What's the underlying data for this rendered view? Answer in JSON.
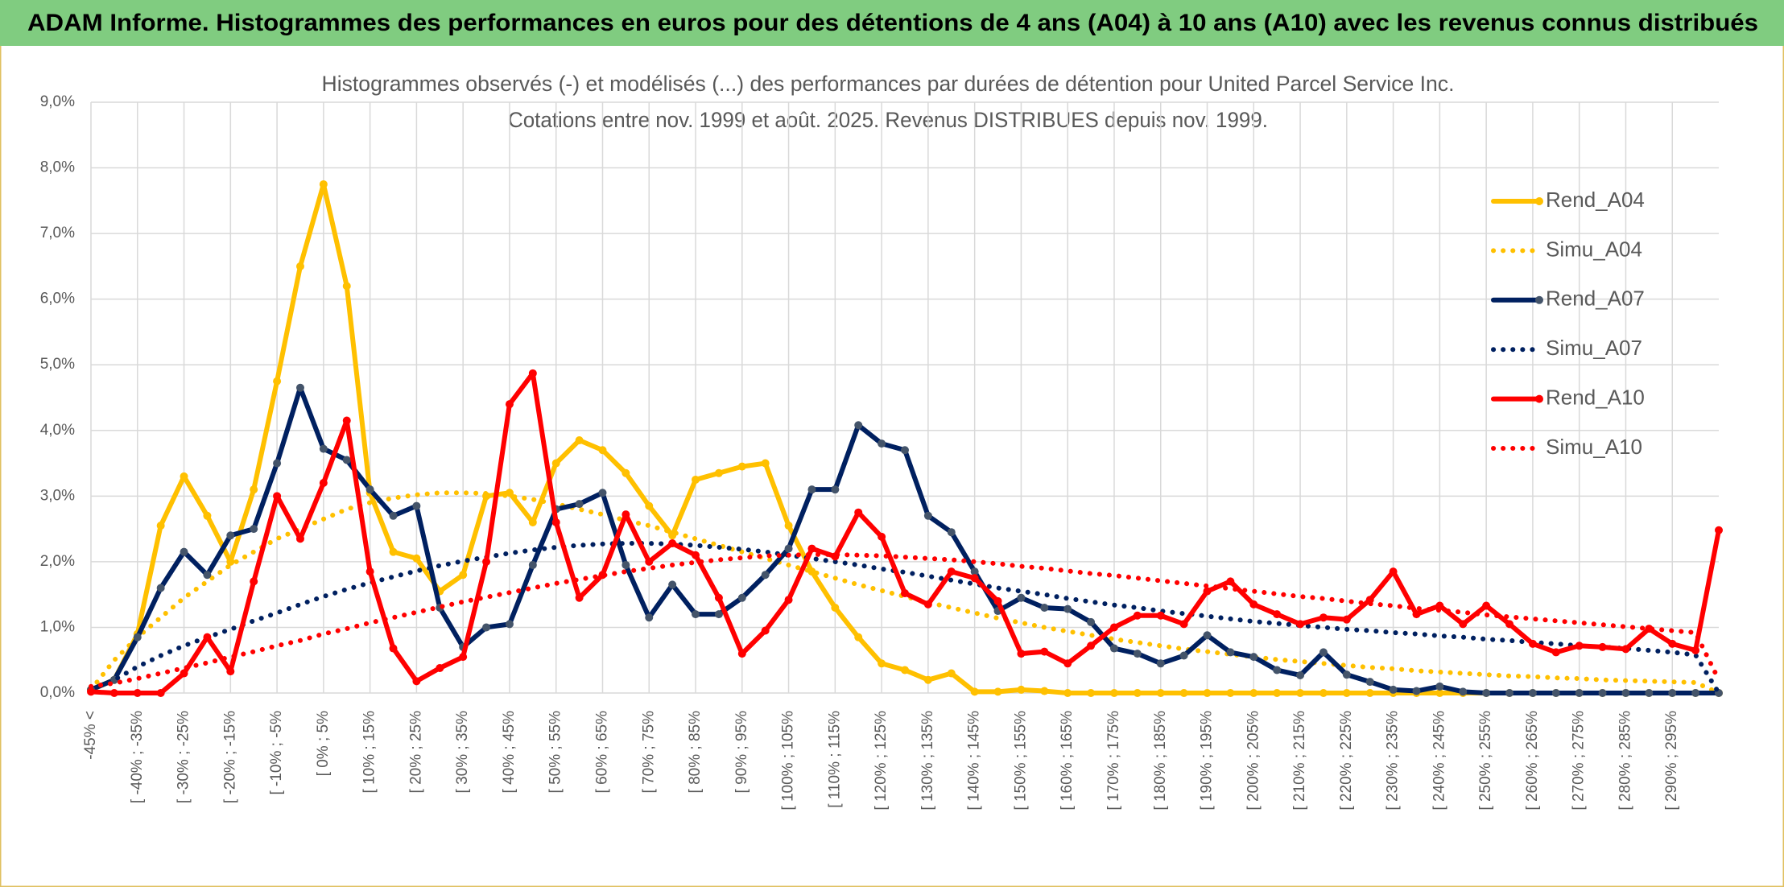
{
  "header": {
    "title": "ADAM Informe. Histogrammes des performances en euros pour des détentions de 4 ans (A04) à 10 ans (A10) avec les revenus connus distribués"
  },
  "chart_data": {
    "type": "line",
    "title": "Histogrammes observés (-) et modélisés (...) des performances par durées de détention pour United Parcel Service Inc.",
    "subtitle": "Cotations entre nov. 1999 et août. 2025. Revenus DISTRIBUES depuis nov. 1999.",
    "categories": [
      "-45% <",
      null,
      "[ -40% ; -35%",
      null,
      "[ -30% ; -25%",
      null,
      "[ -20% ; -15%",
      null,
      "[ -10% ; -5%",
      null,
      "[ 0% ; 5%",
      null,
      "[ 10% ; 15%",
      null,
      "[ 20% ; 25%",
      null,
      "[ 30% ; 35%",
      null,
      "[ 40% ; 45%",
      null,
      "[ 50% ; 55%",
      null,
      "[ 60% ; 65%",
      null,
      "[ 70% ; 75%",
      null,
      "[ 80% ; 85%",
      null,
      "[ 90% ; 95%",
      null,
      "[ 100% ; 105%",
      null,
      "[ 110% ; 115%",
      null,
      "[ 120% ; 125%",
      null,
      "[ 130% ; 135%",
      null,
      "[ 140% ; 145%",
      null,
      "[ 150% ; 155%",
      null,
      "[ 160% ; 165%",
      null,
      "[ 170% ; 175%",
      null,
      "[ 180% ; 185%",
      null,
      "[ 190% ; 195%",
      null,
      "[ 200% ; 205%",
      null,
      "[ 210% ; 215%",
      null,
      "[ 220% ; 225%",
      null,
      "[ 230% ; 235%",
      null,
      "[ 240% ; 245%",
      null,
      "[ 250% ; 255%",
      null,
      "[ 260% ; 265%",
      null,
      "[ 270% ; 275%",
      null,
      "[ 280% ; 285%",
      null,
      "[ 290% ; 295%",
      null,
      null
    ],
    "series": [
      {
        "name": "Rend_A04",
        "color": "#FFC000",
        "style": "solid",
        "values": [
          0.05,
          0.2,
          0.9,
          2.55,
          3.3,
          2.7,
          2.0,
          3.1,
          4.75,
          6.5,
          7.75,
          6.2,
          3.05,
          2.15,
          2.05,
          1.55,
          1.8,
          3.0,
          3.05,
          2.6,
          3.5,
          3.85,
          3.7,
          3.35,
          2.85,
          2.4,
          3.25,
          3.35,
          3.45,
          3.5,
          2.55,
          1.85,
          1.3,
          0.85,
          0.45,
          0.35,
          0.2,
          0.3,
          0.02,
          0.02,
          0.05,
          0.03,
          0,
          0,
          0,
          0,
          0,
          0,
          0,
          0,
          0,
          0,
          0,
          0,
          0,
          0,
          0,
          0,
          0,
          0,
          0,
          0,
          0,
          0,
          0,
          0,
          0,
          0,
          0,
          0,
          0
        ]
      },
      {
        "name": "Simu_A04",
        "color": "#FFC000",
        "style": "dotted",
        "values": [
          0.05,
          0.5,
          0.85,
          1.15,
          1.45,
          1.7,
          1.95,
          2.15,
          2.35,
          2.5,
          2.65,
          2.8,
          2.9,
          2.97,
          3.02,
          3.05,
          3.05,
          3.04,
          3.0,
          2.95,
          2.88,
          2.8,
          2.72,
          2.63,
          2.55,
          2.45,
          2.35,
          2.25,
          2.15,
          2.05,
          1.95,
          1.85,
          1.75,
          1.65,
          1.56,
          1.47,
          1.38,
          1.3,
          1.22,
          1.14,
          1.07,
          1.0,
          0.94,
          0.88,
          0.82,
          0.77,
          0.72,
          0.67,
          0.63,
          0.59,
          0.55,
          0.51,
          0.48,
          0.45,
          0.42,
          0.39,
          0.37,
          0.34,
          0.32,
          0.3,
          0.28,
          0.26,
          0.25,
          0.23,
          0.22,
          0.2,
          0.19,
          0.18,
          0.17,
          0.16,
          0
        ]
      },
      {
        "name": "Rend_A07",
        "color": "#002060",
        "style": "solid",
        "values": [
          0.05,
          0.2,
          0.85,
          1.6,
          2.15,
          1.8,
          2.4,
          2.5,
          3.5,
          4.65,
          3.72,
          3.55,
          3.1,
          2.7,
          2.85,
          1.3,
          0.7,
          1.0,
          1.05,
          1.95,
          2.8,
          2.88,
          3.05,
          1.95,
          1.15,
          1.65,
          1.2,
          1.2,
          1.45,
          1.8,
          2.2,
          3.1,
          3.1,
          4.08,
          3.8,
          3.7,
          2.7,
          2.45,
          1.85,
          1.25,
          1.45,
          1.3,
          1.28,
          1.08,
          0.68,
          0.6,
          0.45,
          0.57,
          0.88,
          0.62,
          0.55,
          0.35,
          0.27,
          0.62,
          0.28,
          0.17,
          0.05,
          0.03,
          0.1,
          0.02,
          0,
          0,
          0,
          0,
          0,
          0,
          0,
          0,
          0,
          0,
          0
        ]
      },
      {
        "name": "Simu_A07",
        "color": "#002060",
        "style": "dotted",
        "values": [
          0.05,
          0.2,
          0.4,
          0.57,
          0.72,
          0.85,
          0.97,
          1.1,
          1.22,
          1.35,
          1.47,
          1.58,
          1.68,
          1.77,
          1.86,
          1.94,
          2.01,
          2.07,
          2.13,
          2.18,
          2.22,
          2.25,
          2.27,
          2.28,
          2.28,
          2.27,
          2.25,
          2.22,
          2.19,
          2.15,
          2.1,
          2.05,
          2.0,
          1.95,
          1.89,
          1.84,
          1.78,
          1.72,
          1.66,
          1.6,
          1.55,
          1.5,
          1.44,
          1.39,
          1.34,
          1.3,
          1.25,
          1.21,
          1.17,
          1.13,
          1.09,
          1.06,
          1.03,
          1.0,
          0.97,
          0.95,
          0.92,
          0.9,
          0.87,
          0.85,
          0.82,
          0.8,
          0.77,
          0.75,
          0.72,
          0.7,
          0.68,
          0.65,
          0.62,
          0.58,
          0
        ]
      },
      {
        "name": "Rend_A10",
        "color": "#FF0000",
        "style": "solid",
        "values": [
          0.02,
          0,
          0,
          0,
          0.3,
          0.85,
          0.33,
          1.7,
          3.0,
          2.35,
          3.2,
          4.15,
          1.85,
          0.68,
          0.18,
          0.38,
          0.55,
          2.0,
          4.4,
          4.87,
          2.6,
          1.45,
          1.8,
          2.72,
          2.0,
          2.28,
          2.1,
          1.45,
          0.6,
          0.95,
          1.42,
          2.2,
          2.08,
          2.75,
          2.38,
          1.52,
          1.35,
          1.85,
          1.75,
          1.4,
          0.6,
          0.63,
          0.45,
          0.72,
          1.0,
          1.18,
          1.18,
          1.05,
          1.55,
          1.7,
          1.35,
          1.2,
          1.05,
          1.15,
          1.12,
          1.42,
          1.85,
          1.2,
          1.33,
          1.05,
          1.33,
          1.05,
          0.75,
          0.62,
          0.72,
          0.7,
          0.67,
          0.98,
          0.75,
          0.65,
          2.48
        ]
      },
      {
        "name": "Simu_A10",
        "color": "#FF0000",
        "style": "dotted",
        "values": [
          0.1,
          0.15,
          0.22,
          0.3,
          0.38,
          0.46,
          0.55,
          0.63,
          0.72,
          0.8,
          0.9,
          0.98,
          1.07,
          1.15,
          1.23,
          1.31,
          1.39,
          1.46,
          1.53,
          1.6,
          1.67,
          1.73,
          1.79,
          1.85,
          1.9,
          1.95,
          1.99,
          2.03,
          2.06,
          2.09,
          2.1,
          2.11,
          2.11,
          2.1,
          2.09,
          2.07,
          2.05,
          2.03,
          2.0,
          1.97,
          1.93,
          1.9,
          1.86,
          1.82,
          1.79,
          1.75,
          1.71,
          1.67,
          1.63,
          1.59,
          1.55,
          1.51,
          1.47,
          1.44,
          1.4,
          1.36,
          1.33,
          1.29,
          1.26,
          1.23,
          1.19,
          1.16,
          1.13,
          1.1,
          1.07,
          1.04,
          1.01,
          0.98,
          0.95,
          0.92,
          0.2
        ]
      }
    ],
    "ylim": [
      0,
      9
    ],
    "yticks": [
      {
        "value": 0,
        "label": "0,0%"
      },
      {
        "value": 1,
        "label": "1,0%"
      },
      {
        "value": 2,
        "label": "2,0%"
      },
      {
        "value": 3,
        "label": "3,0%"
      },
      {
        "value": 4,
        "label": "4,0%"
      },
      {
        "value": 5,
        "label": "5,0%"
      },
      {
        "value": 6,
        "label": "6,0%"
      },
      {
        "value": 7,
        "label": "7,0%"
      },
      {
        "value": 8,
        "label": "8,0%"
      },
      {
        "value": 9,
        "label": "9,0%"
      }
    ],
    "grid": true,
    "legend": "right"
  }
}
